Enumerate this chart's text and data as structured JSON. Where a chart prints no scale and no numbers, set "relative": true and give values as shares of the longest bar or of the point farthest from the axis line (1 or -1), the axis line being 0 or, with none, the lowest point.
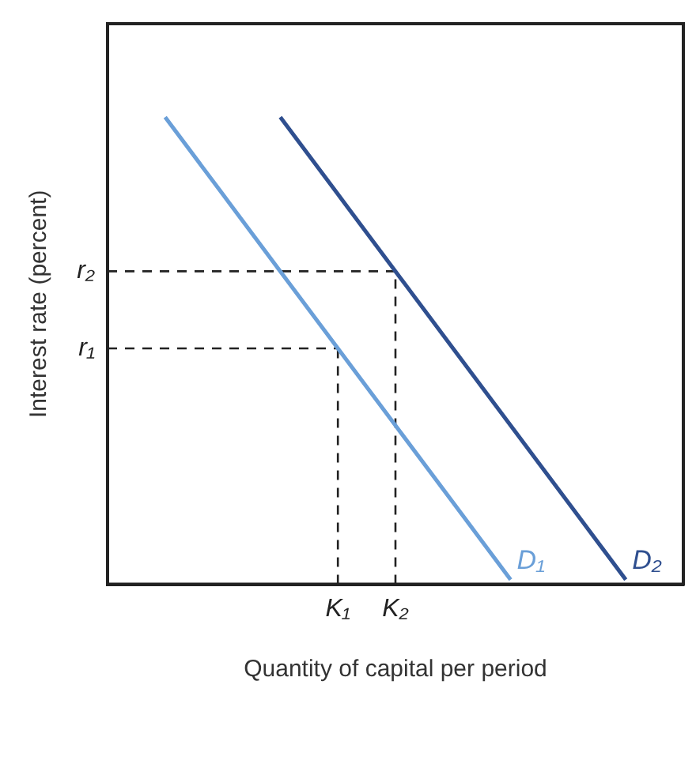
{
  "chart_data": {
    "type": "line",
    "relative": true,
    "xlabel": "Quantity of capital per period",
    "ylabel": "Interest rate (percent)",
    "categories": [
      null,
      null,
      null,
      null,
      "K₁",
      "K₂",
      null,
      null,
      null,
      null,
      null
    ],
    "series": [
      {
        "name": "D₁",
        "color": "#6a9fd8",
        "values": [
          null,
          1,
          0.835,
          0.67,
          0.505,
          0.34,
          0.175,
          0.01,
          null,
          null,
          null
        ]
      },
      {
        "name": "D₂",
        "color": "#2f4f8f",
        "values": [
          null,
          null,
          null,
          1,
          0.835,
          0.67,
          0.505,
          0.34,
          0.175,
          0.01,
          null
        ]
      }
    ],
    "ref_lines": [
      {
        "axis": "x",
        "value": "K₁",
        "line_style": "dashed"
      },
      {
        "axis": "x",
        "value": "K₂",
        "line_style": "dashed"
      },
      {
        "axis": "y",
        "value": 0.505,
        "label": "r₁",
        "line_style": "dashed"
      },
      {
        "axis": "y",
        "value": 0.67,
        "label": "r₂",
        "line_style": "dashed"
      }
    ],
    "grid": false,
    "legend": false,
    "marker": "none",
    "line_style": "solid"
  }
}
